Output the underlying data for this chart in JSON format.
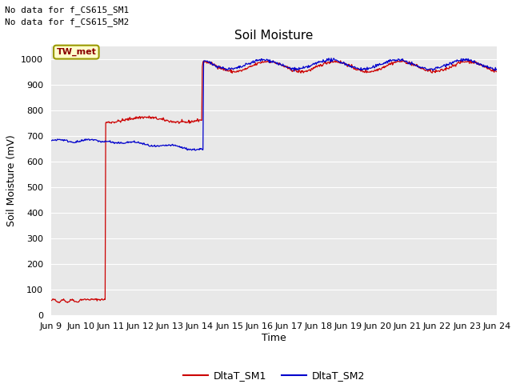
{
  "title": "Soil Moisture",
  "ylabel": "Soil Moisture (mV)",
  "xlabel": "Time",
  "ylim": [
    0,
    1050
  ],
  "yticks": [
    0,
    100,
    200,
    300,
    400,
    500,
    600,
    700,
    800,
    900,
    1000
  ],
  "background_color": "#e8e8e8",
  "figure_bg": "#ffffff",
  "line1_color": "#cc0000",
  "line2_color": "#0000cc",
  "legend_labels": [
    "DltaT_SM1",
    "DltaT_SM2"
  ],
  "annotation_text1": "No data for f_CS615_SM1",
  "annotation_text2": "No data for f_CS615_SM2",
  "box_label": "TW_met",
  "x_tick_labels": [
    "Jun 9",
    "Jun 10",
    "Jun 11",
    "Jun 12",
    "Jun 13",
    "Jun 14",
    "Jun 15",
    "Jun 16",
    "Jun 17",
    "Jun 18",
    "Jun 19",
    "Jun 20",
    "Jun 21",
    "Jun 22",
    "Jun 23",
    "Jun 24"
  ],
  "title_fontsize": 11,
  "axis_fontsize": 9,
  "tick_fontsize": 8,
  "days": 15
}
